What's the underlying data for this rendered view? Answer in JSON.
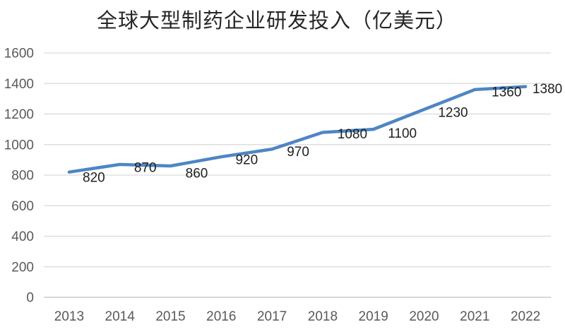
{
  "chart_data": {
    "type": "line",
    "title": "全球大型制药企业研发投入（亿美元）",
    "categories": [
      "2013",
      "2014",
      "2015",
      "2016",
      "2017",
      "2018",
      "2019",
      "2020",
      "2021",
      "2022"
    ],
    "values": [
      820,
      870,
      860,
      920,
      970,
      1080,
      1100,
      1230,
      1360,
      1380
    ],
    "xlabel": "",
    "ylabel": "",
    "ylim": [
      0,
      1600
    ],
    "ytick_step": 200,
    "grid": true,
    "legend_position": "none",
    "data_labels_visible": true,
    "colors": {
      "line": "#4E86C4",
      "grid": "#D9D9D9",
      "axis": "#BFBFBF",
      "tick_label": "#595959",
      "data_label": "#1F1F1F",
      "title": "#262626",
      "background": "#FFFFFF"
    }
  }
}
